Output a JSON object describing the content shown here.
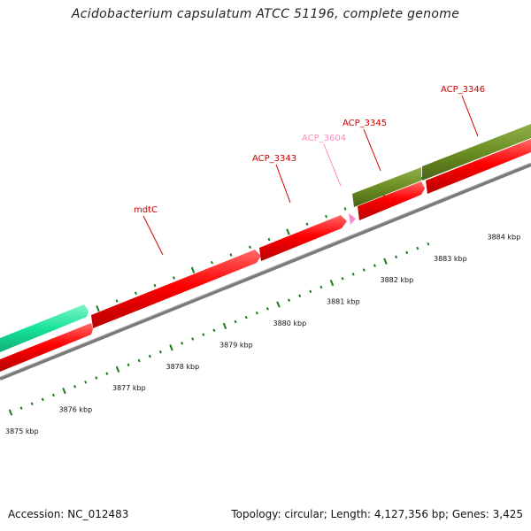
{
  "title": "Acidobacterium capsulatum ATCC 51196, complete genome",
  "footer": {
    "accession": "Accession: NC_012483",
    "summary": "Topology: circular; Length: 4,127,356 bp; Genes: 3,425"
  },
  "scale": {
    "labels": [
      {
        "kbp": 3875,
        "text": "3875 kbp"
      },
      {
        "kbp": 3876,
        "text": "3876 kbp"
      },
      {
        "kbp": 3877,
        "text": "3877 kbp"
      },
      {
        "kbp": 3878,
        "text": "3878 kbp"
      },
      {
        "kbp": 3879,
        "text": "3879 kbp"
      },
      {
        "kbp": 3880,
        "text": "3880 kbp"
      },
      {
        "kbp": 3881,
        "text": "3881 kbp"
      },
      {
        "kbp": 3882,
        "text": "3882 kbp"
      },
      {
        "kbp": 3883,
        "text": "3883 kbp"
      },
      {
        "kbp": 3884,
        "text": "3884 kbp"
      }
    ]
  },
  "genes": [
    {
      "name": "",
      "track": "outer",
      "color": "#17e39a"
    },
    {
      "name": "",
      "track": "inner",
      "color": "#ff0000"
    },
    {
      "name": "mdtC",
      "track": "inner",
      "color": "#ff0000",
      "label_color": "#cc0000"
    },
    {
      "name": "",
      "track": "inner",
      "color": "#ff0000"
    },
    {
      "name": "ACP_3604",
      "track": "inner",
      "color": "#ff99cc",
      "label_color": "#ff88bb"
    },
    {
      "name": "ACP_3343",
      "track": "inner",
      "color": "#ff0000",
      "label_color": "#cc0000"
    },
    {
      "name": "ACP_3345",
      "track": "outer",
      "color": "#6b8e23",
      "label_color": "#cc0000"
    },
    {
      "name": "ACP_3346",
      "track": "outer",
      "color": "#6b8e23",
      "label_color": "#cc0000"
    },
    {
      "name": "",
      "track": "inner",
      "color": "#ff0000"
    }
  ],
  "colors": {
    "backbone": "#888888",
    "ticks": "#1a7a1a"
  }
}
